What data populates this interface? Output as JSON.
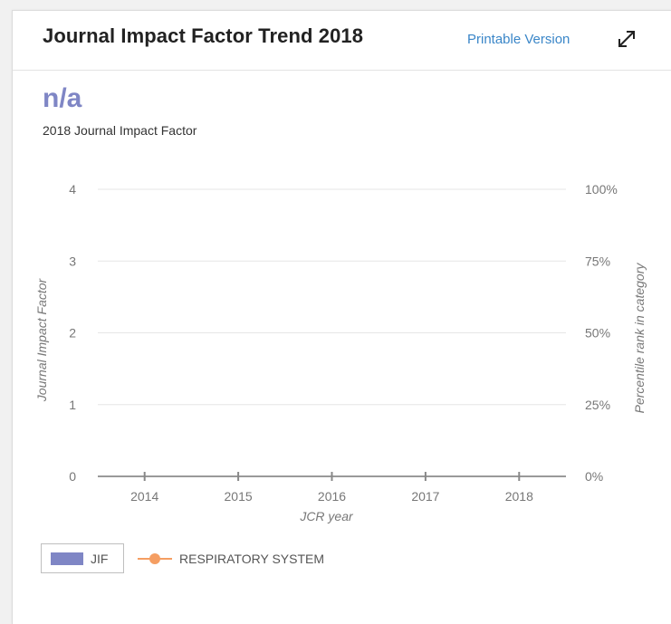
{
  "header": {
    "title": "Journal Impact Factor Trend 2018",
    "printable_label": "Printable Version",
    "expand_icon": "expand-arrows-icon"
  },
  "summary": {
    "value": "n/a",
    "label": "2018 Journal Impact Factor"
  },
  "colors": {
    "jif": "#7f86c5",
    "category": "#f59e62",
    "link": "#3a86c8",
    "grid": "#e6e6e6",
    "axis_text": "#777777"
  },
  "chart_data": {
    "type": "bar",
    "categories": [
      "2014",
      "2015",
      "2016",
      "2017",
      "2018"
    ],
    "series": [
      {
        "name": "JIF",
        "type": "bar",
        "axis": "left",
        "values": [
          null,
          null,
          null,
          null,
          null
        ]
      },
      {
        "name": "RESPIRATORY SYSTEM",
        "type": "line",
        "axis": "right",
        "values": [
          null,
          null,
          null,
          null,
          null
        ]
      }
    ],
    "xlabel": "JCR year",
    "ylabel": "Journal Impact Factor",
    "y2label": "Percentile rank in category",
    "ylim": [
      0,
      4
    ],
    "y2lim": [
      0,
      100
    ],
    "yticks": [
      "0",
      "1",
      "2",
      "3",
      "4"
    ],
    "y2ticks": [
      "0%",
      "25%",
      "50%",
      "75%",
      "100%"
    ],
    "grid": true,
    "legend": "bottom-left"
  }
}
